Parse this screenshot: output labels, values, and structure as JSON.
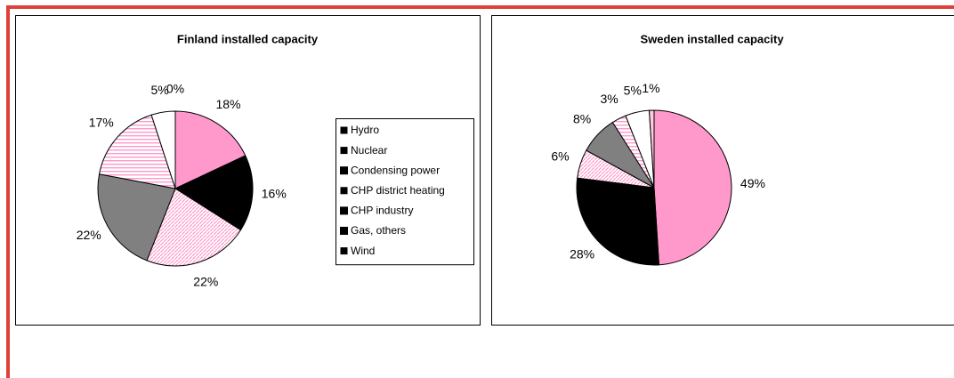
{
  "chart_data": [
    {
      "type": "pie",
      "title": "Finland installed capacity",
      "categories": [
        "Hydro",
        "Nuclear",
        "Condensing power",
        "CHP district heating",
        "CHP industry",
        "Gas, others",
        "Wind"
      ],
      "values": [
        18,
        16,
        22,
        22,
        17,
        5,
        0
      ],
      "value_labels": [
        "18%",
        "16%",
        "22%",
        "22%",
        "17%",
        "5%",
        "0%"
      ],
      "colors": [
        "#ff99cc",
        "#000000",
        "#ff99cc",
        "#808080",
        "#ff99cc",
        "#ffffff",
        "#ffccdd"
      ],
      "patterns": [
        null,
        null,
        "diagonal",
        null,
        "horizontal",
        null,
        null
      ],
      "legend": "right"
    },
    {
      "type": "pie",
      "title": "Sweden installed capacity",
      "categories": [
        "Hydro",
        "Nuclear",
        "Condensing power",
        "CHP district heating",
        "CHP industry",
        "Gas, others",
        "Wind"
      ],
      "values": [
        49,
        28,
        6,
        8,
        3,
        5,
        1
      ],
      "value_labels": [
        "49%",
        "28%",
        "6%",
        "8%",
        "3%",
        "5%",
        "1%"
      ],
      "colors": [
        "#ff99cc",
        "#000000",
        "#ff99cc",
        "#808080",
        "#ff99cc",
        "#ffffff",
        "#ffccdd"
      ],
      "patterns": [
        null,
        null,
        "diagonal",
        null,
        "horizontal",
        null,
        null
      ],
      "legend": null
    }
  ]
}
